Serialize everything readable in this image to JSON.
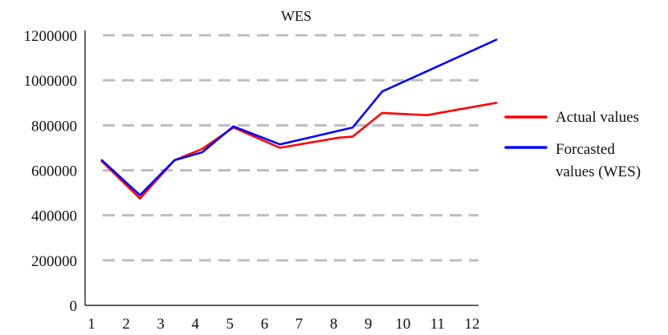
{
  "chart_data": {
    "type": "line",
    "title": "WES",
    "xlabel": "",
    "ylabel": "",
    "x_ticks": [
      "1",
      "2",
      "3",
      "4",
      "5",
      "6",
      "7",
      "8",
      "9",
      "10",
      "11",
      "12"
    ],
    "y_ticks": [
      "0",
      "200000",
      "400000",
      "600000",
      "800000",
      "1000000",
      "1200000"
    ],
    "ylim": [
      0,
      1200000
    ],
    "grid": true,
    "legend_position": "right",
    "series": [
      {
        "name": "Actual values",
        "color": "#ff0000",
        "points": [
          {
            "x": 1.3,
            "y": 640000
          },
          {
            "x": 2.4,
            "y": 475000
          },
          {
            "x": 3.4,
            "y": 645000
          },
          {
            "x": 4.2,
            "y": 695000
          },
          {
            "x": 5.1,
            "y": 790000
          },
          {
            "x": 6.45,
            "y": 700000
          },
          {
            "x": 8.15,
            "y": 745000
          },
          {
            "x": 8.55,
            "y": 750000
          },
          {
            "x": 9.4,
            "y": 855000
          },
          {
            "x": 10.7,
            "y": 845000
          },
          {
            "x": 11.6,
            "y": 870000
          },
          {
            "x": 12.7,
            "y": 900000
          }
        ]
      },
      {
        "name": "Forcasted values (WES)",
        "color": "#0000ff",
        "points": [
          {
            "x": 1.3,
            "y": 645000
          },
          {
            "x": 2.4,
            "y": 490000
          },
          {
            "x": 3.4,
            "y": 645000
          },
          {
            "x": 4.2,
            "y": 680000
          },
          {
            "x": 5.1,
            "y": 795000
          },
          {
            "x": 6.45,
            "y": 715000
          },
          {
            "x": 8.55,
            "y": 790000
          },
          {
            "x": 9.4,
            "y": 950000
          },
          {
            "x": 12.7,
            "y": 1180000
          }
        ]
      }
    ]
  }
}
